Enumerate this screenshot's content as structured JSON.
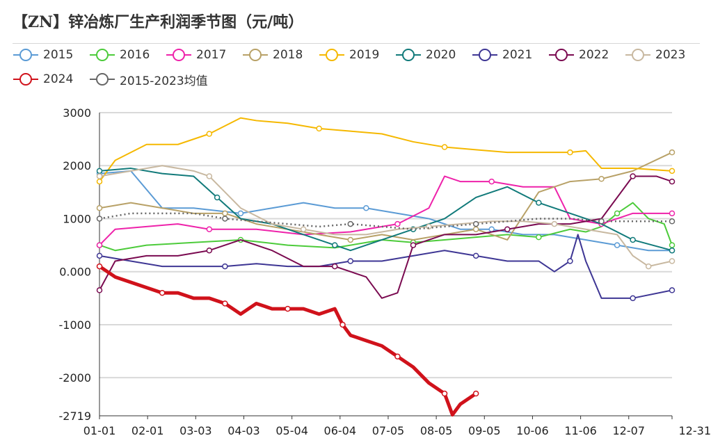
{
  "chart_data": {
    "type": "line",
    "title": "【ZN】锌冶炼厂生产利润季节图（元/吨）",
    "xlabel": "",
    "ylabel": "",
    "x_tick_labels": [
      "01-01",
      "02-01",
      "03-03",
      "04-03",
      "05-04",
      "06-04",
      "07-05",
      "08-05",
      "09-05",
      "10-06",
      "11-06",
      "12-07",
      "12-31"
    ],
    "y_tick_labels": [
      "3000",
      "2000",
      "1000",
      "0.000",
      "-1000",
      "-2000",
      "-2719"
    ],
    "ylim": [
      -2719,
      3000
    ],
    "x_unit": "day of year",
    "xlim": [
      0,
      365
    ],
    "grid": "horizontal",
    "legend_position": "top",
    "series": [
      {
        "name": "2015",
        "color": "#5b9bd5",
        "style": "solid",
        "x": [
          0,
          20,
          40,
          60,
          90,
          110,
          130,
          150,
          170,
          190,
          210,
          230,
          250,
          270,
          290,
          310,
          330,
          350,
          365
        ],
        "y": [
          1850,
          1900,
          1200,
          1200,
          1100,
          1200,
          1300,
          1200,
          1200,
          1100,
          1000,
          800,
          800,
          700,
          700,
          600,
          500,
          400,
          400
        ]
      },
      {
        "name": "2016",
        "color": "#4ccb3a",
        "style": "solid",
        "x": [
          0,
          10,
          30,
          60,
          90,
          120,
          150,
          180,
          200,
          220,
          240,
          260,
          280,
          300,
          310,
          320,
          330,
          340,
          350,
          360,
          365
        ],
        "y": [
          500,
          400,
          500,
          550,
          600,
          500,
          450,
          600,
          550,
          600,
          650,
          700,
          650,
          800,
          750,
          850,
          1100,
          1300,
          1000,
          900,
          500
        ]
      },
      {
        "name": "2017",
        "color": "#ee22aa",
        "style": "solid",
        "x": [
          0,
          10,
          30,
          50,
          70,
          100,
          130,
          160,
          190,
          210,
          220,
          230,
          250,
          270,
          290,
          300,
          320,
          340,
          365
        ],
        "y": [
          500,
          800,
          850,
          900,
          800,
          800,
          700,
          750,
          900,
          1200,
          1800,
          1700,
          1700,
          1600,
          1600,
          1000,
          900,
          1100,
          1100
        ]
      },
      {
        "name": "2018",
        "color": "#b8a167",
        "style": "solid",
        "x": [
          0,
          20,
          40,
          60,
          80,
          100,
          120,
          140,
          160,
          180,
          200,
          220,
          240,
          260,
          280,
          300,
          320,
          340,
          365
        ],
        "y": [
          1200,
          1300,
          1200,
          1100,
          1100,
          900,
          800,
          700,
          600,
          700,
          600,
          700,
          800,
          600,
          1500,
          1700,
          1750,
          1900,
          2250
        ]
      },
      {
        "name": "2019",
        "color": "#f5b800",
        "style": "solid",
        "x": [
          0,
          10,
          30,
          50,
          70,
          90,
          100,
          120,
          140,
          160,
          180,
          200,
          220,
          240,
          260,
          280,
          300,
          310,
          320,
          340,
          365
        ],
        "y": [
          1700,
          2100,
          2400,
          2400,
          2600,
          2900,
          2850,
          2800,
          2700,
          2650,
          2600,
          2450,
          2350,
          2300,
          2250,
          2250,
          2250,
          2280,
          1950,
          1950,
          1900
        ]
      },
      {
        "name": "2020",
        "color": "#117a7a",
        "style": "solid",
        "x": [
          0,
          20,
          40,
          60,
          75,
          90,
          110,
          130,
          150,
          160,
          170,
          180,
          200,
          220,
          240,
          260,
          280,
          300,
          310,
          320,
          340,
          365
        ],
        "y": [
          1900,
          1950,
          1850,
          1800,
          1400,
          1000,
          900,
          700,
          500,
          400,
          500,
          600,
          800,
          1000,
          1400,
          1600,
          1300,
          1100,
          1000,
          900,
          600,
          400
        ]
      },
      {
        "name": "2021",
        "color": "#3e3694",
        "style": "solid",
        "x": [
          0,
          20,
          40,
          60,
          80,
          100,
          120,
          140,
          160,
          180,
          200,
          220,
          240,
          260,
          280,
          290,
          300,
          305,
          310,
          320,
          340,
          365
        ],
        "y": [
          300,
          200,
          100,
          100,
          100,
          150,
          100,
          100,
          200,
          200,
          300,
          400,
          300,
          200,
          200,
          0,
          200,
          700,
          200,
          -500,
          -500,
          -350
        ]
      },
      {
        "name": "2022",
        "color": "#7a0a50",
        "style": "solid",
        "x": [
          0,
          10,
          30,
          50,
          70,
          90,
          110,
          130,
          150,
          170,
          180,
          190,
          200,
          210,
          220,
          240,
          260,
          280,
          300,
          320,
          340,
          355,
          365
        ],
        "y": [
          -350,
          200,
          300,
          300,
          400,
          600,
          400,
          100,
          100,
          -100,
          -500,
          -400,
          500,
          600,
          700,
          700,
          800,
          900,
          900,
          1000,
          1800,
          1800,
          1700
        ]
      },
      {
        "name": "2023",
        "color": "#c8b8a0",
        "style": "solid",
        "x": [
          0,
          20,
          40,
          60,
          70,
          80,
          90,
          110,
          130,
          150,
          170,
          190,
          210,
          230,
          250,
          270,
          290,
          310,
          330,
          340,
          350,
          365
        ],
        "y": [
          1800,
          1900,
          2000,
          1900,
          1800,
          1500,
          1200,
          900,
          800,
          700,
          700,
          800,
          850,
          900,
          950,
          950,
          900,
          800,
          700,
          300,
          100,
          200
        ]
      },
      {
        "name": "2024",
        "color": "#d0121b",
        "style": "thick",
        "x": [
          0,
          10,
          20,
          30,
          40,
          50,
          60,
          70,
          80,
          90,
          100,
          110,
          120,
          130,
          140,
          150,
          155,
          160,
          170,
          180,
          190,
          200,
          210,
          215,
          220,
          225,
          230,
          240
        ],
        "y": [
          100,
          -100,
          -200,
          -300,
          -400,
          -400,
          -500,
          -500,
          -600,
          -800,
          -600,
          -700,
          -700,
          -700,
          -800,
          -700,
          -1000,
          -1200,
          -1300,
          -1400,
          -1600,
          -1800,
          -2100,
          -2200,
          -2300,
          -2700,
          -2500,
          -2300
        ]
      },
      {
        "name": "2015-2023均值",
        "color": "#666666",
        "style": "dotted",
        "x": [
          0,
          20,
          40,
          60,
          80,
          100,
          120,
          140,
          160,
          180,
          200,
          220,
          240,
          260,
          280,
          300,
          320,
          340,
          365
        ],
        "y": [
          1000,
          1100,
          1100,
          1100,
          1000,
          950,
          900,
          850,
          900,
          850,
          800,
          850,
          900,
          950,
          1000,
          1000,
          950,
          950,
          950
        ]
      }
    ]
  }
}
